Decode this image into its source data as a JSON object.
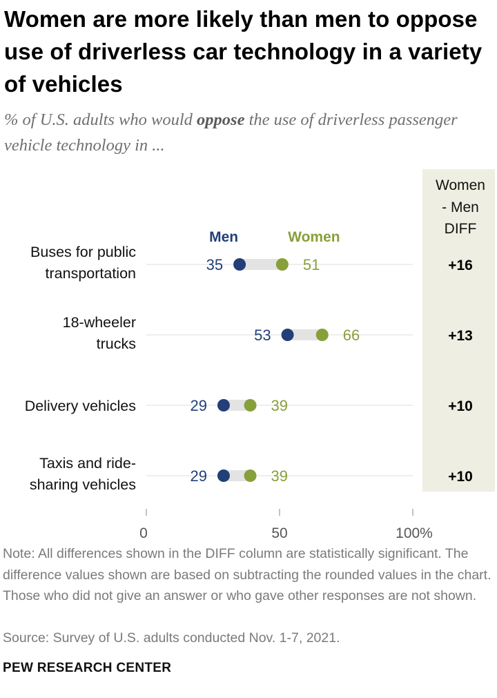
{
  "title": "Women are more likely than men to oppose use of driverless car technology in a variety of vehicles",
  "subtitle_parts": {
    "before": "% of U.S. adults who would ",
    "emphasis": "oppose",
    "after": " the use of driverless passenger vehicle technology in ..."
  },
  "legend": {
    "men": "Men",
    "women": "Women"
  },
  "diff_header": [
    "Women",
    "- Men",
    "DIFF"
  ],
  "colors": {
    "men": "#223f7a",
    "women": "#87a03a",
    "diff_bg": "#eeeee2",
    "connector": "#e3e3e3",
    "gridline": "#dcdcdc",
    "axis_text": "#555555"
  },
  "chart_data": {
    "type": "dot-plot",
    "title": "Women are more likely than men to oppose use of driverless car technology in a variety of vehicles",
    "categories": [
      [
        "Buses for public",
        "transportation"
      ],
      [
        "18-wheeler",
        "trucks"
      ],
      [
        "Delivery vehicles"
      ],
      [
        "Taxis and ride-",
        "sharing vehicles"
      ]
    ],
    "series": [
      {
        "name": "Men",
        "values": [
          35,
          53,
          29,
          29
        ]
      },
      {
        "name": "Women",
        "values": [
          51,
          66,
          39,
          39
        ]
      }
    ],
    "diff": [
      "+16",
      "+13",
      "+10",
      "+10"
    ],
    "xlim": [
      0,
      100
    ],
    "xticks": [
      0,
      50,
      100
    ],
    "xtick_labels": [
      "0",
      "50",
      "100%"
    ]
  },
  "note": "Note: All differences shown in the DIFF column are statistically significant. The difference values shown are based on subtracting the rounded values in the chart. Those who did not give an answer or who gave other responses are not shown.",
  "source": "Source: Survey of U.S. adults conducted Nov. 1-7, 2021.",
  "brand": "PEW RESEARCH CENTER"
}
